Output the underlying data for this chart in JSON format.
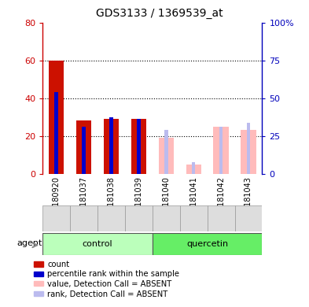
{
  "title": "GDS3133 / 1369539_at",
  "samples": [
    "GSM180920",
    "GSM181037",
    "GSM181038",
    "GSM181039",
    "GSM181040",
    "GSM181041",
    "GSM181042",
    "GSM181043"
  ],
  "groups": [
    "control",
    "control",
    "control",
    "control",
    "quercetin",
    "quercetin",
    "quercetin",
    "quercetin"
  ],
  "group_labels": [
    "control",
    "quercetin"
  ],
  "group_colors_light": [
    "#bbffbb",
    "#66ee66"
  ],
  "count_values": [
    60,
    28,
    29,
    29,
    null,
    null,
    null,
    null
  ],
  "rank_values": [
    43,
    25,
    30,
    29,
    null,
    null,
    null,
    null
  ],
  "absent_value": [
    null,
    null,
    null,
    null,
    19,
    5,
    25,
    23
  ],
  "absent_rank": [
    null,
    null,
    null,
    null,
    23,
    6,
    25,
    27
  ],
  "left_ylim": [
    0,
    80
  ],
  "right_ylim": [
    0,
    100
  ],
  "left_yticks": [
    0,
    20,
    40,
    60,
    80
  ],
  "right_yticks": [
    0,
    25,
    50,
    75,
    100
  ],
  "right_yticklabels": [
    "0",
    "25",
    "50",
    "75",
    "100%"
  ],
  "ylabel_left_color": "#cc0000",
  "ylabel_right_color": "#0000bb",
  "count_color": "#cc1100",
  "rank_color": "#0000cc",
  "absent_value_color": "#ffbbbb",
  "absent_rank_color": "#bbbbee",
  "grid_color": "#000000",
  "plot_bg_color": "#ffffff",
  "agent_label": "agent",
  "legend_items": [
    {
      "label": "count",
      "color": "#cc1100"
    },
    {
      "label": "percentile rank within the sample",
      "color": "#0000cc"
    },
    {
      "label": "value, Detection Call = ABSENT",
      "color": "#ffbbbb"
    },
    {
      "label": "rank, Detection Call = ABSENT",
      "color": "#bbbbee"
    }
  ]
}
